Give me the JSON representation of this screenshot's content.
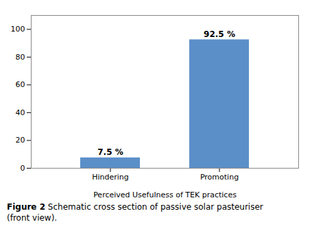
{
  "chart_data": {
    "type": "bar",
    "categories": [
      "Hindering",
      "Promoting"
    ],
    "values": [
      7.5,
      92.5
    ],
    "value_labels": [
      "7.5 %",
      "92.5 %"
    ],
    "data_labels": true,
    "color": "#5b8fc8",
    "xlabel": "Perceived Usefulness of TEK practices",
    "ylim": [
      0,
      110
    ],
    "yticks": [
      0,
      20,
      40,
      60,
      80,
      100
    ],
    "grid": false,
    "annotations": [
      "Figure 2",
      "Schematic cross section of passive solar pasteuriser\n(front view)."
    ]
  }
}
